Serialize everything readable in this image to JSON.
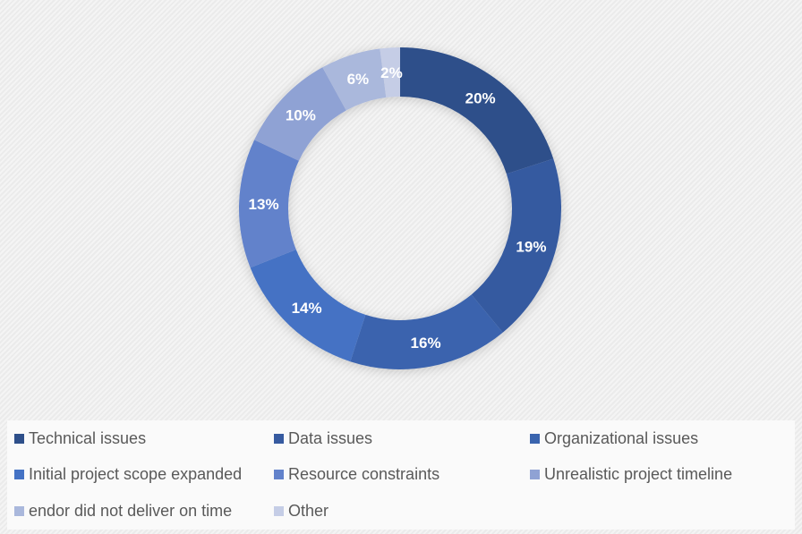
{
  "chart_data": {
    "type": "pie",
    "variant": "doughnut",
    "title": "",
    "categories": [
      "Technical issues",
      "Data issues",
      "Organizational issues",
      "Initial project scope expanded",
      "Resource constraints",
      "Unrealistic project timeline",
      "endor did not deliver on time",
      "Other"
    ],
    "values": [
      20,
      19,
      16,
      14,
      13,
      10,
      6,
      2
    ],
    "labels": [
      "20%",
      "19%",
      "16%",
      "14%",
      "13%",
      "10%",
      "6%",
      "2%"
    ],
    "colors": [
      "#2E4F8A",
      "#365AA0",
      "#3A64AE",
      "#4472C4",
      "#6282CB",
      "#8FA2D4",
      "#AAB8DC",
      "#C5CDE6"
    ],
    "legend_placement": "bottom"
  }
}
